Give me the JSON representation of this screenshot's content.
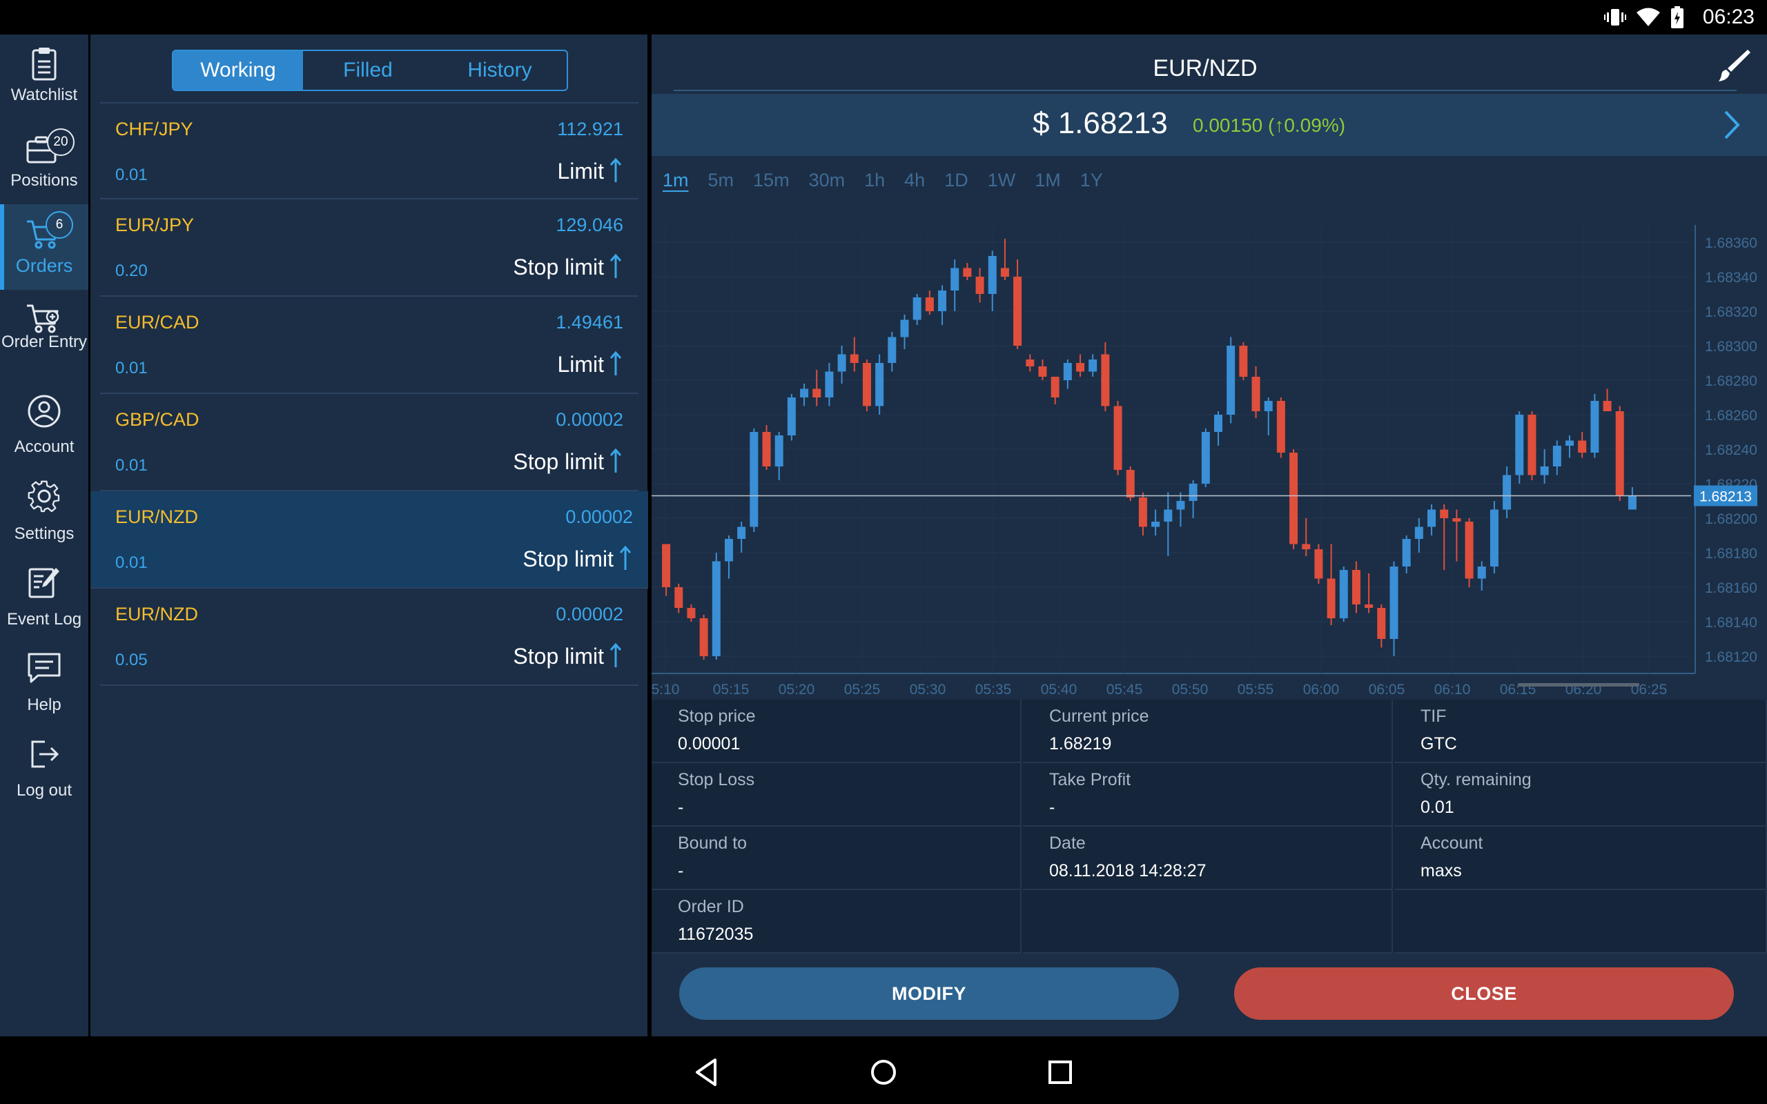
{
  "status_bar": {
    "time": "06:23",
    "icons": [
      "vibrate-icon",
      "wifi-icon",
      "battery-icon"
    ]
  },
  "sidebar": {
    "items": [
      {
        "id": "watchlist",
        "label": "Watchlist",
        "icon": "clipboard-icon"
      },
      {
        "id": "positions",
        "label": "Positions",
        "icon": "briefcase-icon",
        "badge": "20"
      },
      {
        "id": "orders",
        "label": "Orders",
        "icon": "cart-icon",
        "badge": "6",
        "active": true
      },
      {
        "id": "order-entry",
        "label": "Order Entry",
        "icon": "cart-plus-icon"
      },
      {
        "id": "account",
        "label": "Account",
        "icon": "user-icon"
      },
      {
        "id": "settings",
        "label": "Settings",
        "icon": "gear-icon"
      },
      {
        "id": "event-log",
        "label": "Event Log",
        "icon": "edit-log-icon"
      },
      {
        "id": "help",
        "label": "Help",
        "icon": "chat-icon"
      },
      {
        "id": "logout",
        "label": "Log out",
        "icon": "logout-icon"
      }
    ]
  },
  "orders": {
    "tabs": [
      {
        "label": "Working",
        "active": true
      },
      {
        "label": "Filled",
        "active": false
      },
      {
        "label": "History",
        "active": false
      }
    ],
    "rows": [
      {
        "symbol": "CHF/JPY",
        "price": "112.921",
        "qty": "0.01",
        "type": "Limit",
        "direction": "up"
      },
      {
        "symbol": "EUR/JPY",
        "price": "129.046",
        "qty": "0.20",
        "type": "Stop limit",
        "direction": "up"
      },
      {
        "symbol": "EUR/CAD",
        "price": "1.49461",
        "qty": "0.01",
        "type": "Limit",
        "direction": "up"
      },
      {
        "symbol": "GBP/CAD",
        "price": "0.00002",
        "qty": "0.01",
        "type": "Stop limit",
        "direction": "up"
      },
      {
        "symbol": "EUR/NZD",
        "price": "0.00002",
        "qty": "0.01",
        "type": "Stop limit",
        "direction": "up",
        "selected": true
      },
      {
        "symbol": "EUR/NZD",
        "price": "0.00002",
        "qty": "0.05",
        "type": "Stop limit",
        "direction": "up"
      }
    ]
  },
  "detail": {
    "title": "EUR/NZD",
    "last_price": "$ 1.68213",
    "change": "0.00150 (↑0.09%)",
    "timeframes": [
      "1m",
      "5m",
      "15m",
      "30m",
      "1h",
      "4h",
      "1D",
      "1W",
      "1M",
      "1Y"
    ],
    "active_timeframe": "1m",
    "fields": [
      {
        "label": "Stop price",
        "value": "0.00001"
      },
      {
        "label": "Current price",
        "value": "1.68219"
      },
      {
        "label": "TIF",
        "value": "GTC"
      },
      {
        "label": "Stop Loss",
        "value": "-"
      },
      {
        "label": "Take Profit",
        "value": "-"
      },
      {
        "label": "Qty. remaining",
        "value": "0.01"
      },
      {
        "label": "Bound to",
        "value": "-"
      },
      {
        "label": "Date",
        "value": "08.11.2018 14:28:27"
      },
      {
        "label": "Account",
        "value": "maxs"
      },
      {
        "label": "Order ID",
        "value": "11672035"
      },
      {
        "label": "",
        "value": ""
      },
      {
        "label": "",
        "value": ""
      }
    ],
    "modify_label": "MODIFY",
    "close_label": "CLOSE"
  },
  "colors": {
    "up": "#3a8fd6",
    "down": "#e04e3c",
    "accent": "#3aa6ea",
    "symbol": "#f6bd2c",
    "positive_change": "#8ecb3a"
  },
  "chart_data": {
    "type": "candlestick",
    "symbol": "EUR/NZD",
    "interval": "1m",
    "ylim": [
      1.6811,
      1.6837
    ],
    "y_ticks": [
      "1.68360",
      "1.68340",
      "1.68320",
      "1.68300",
      "1.68280",
      "1.68260",
      "1.68240",
      "1.68220",
      "1.68200",
      "1.68180",
      "1.68160",
      "1.68140",
      "1.68120"
    ],
    "x_ticks": [
      "5:10",
      "05:15",
      "05:20",
      "05:25",
      "05:30",
      "05:35",
      "05:40",
      "05:45",
      "05:50",
      "05:55",
      "06:00",
      "06:05",
      "06:10",
      "06:15",
      "06:20",
      "06:25"
    ],
    "current_price_label": "1.68213",
    "current_price": 1.68213,
    "candles": [
      [
        1.68185,
        1.68185,
        1.68155,
        1.6816
      ],
      [
        1.6816,
        1.68162,
        1.68145,
        1.68148
      ],
      [
        1.68148,
        1.6815,
        1.6814,
        1.68142
      ],
      [
        1.68142,
        1.68144,
        1.68118,
        1.6812
      ],
      [
        1.6812,
        1.6818,
        1.68118,
        1.68175
      ],
      [
        1.68175,
        1.6819,
        1.68165,
        1.68188
      ],
      [
        1.68188,
        1.68198,
        1.6818,
        1.68195
      ],
      [
        1.68195,
        1.68252,
        1.68192,
        1.6825
      ],
      [
        1.6825,
        1.68254,
        1.68228,
        1.6823
      ],
      [
        1.6823,
        1.6825,
        1.68222,
        1.68248
      ],
      [
        1.68248,
        1.68272,
        1.68245,
        1.6827
      ],
      [
        1.6827,
        1.68278,
        1.68265,
        1.68275
      ],
      [
        1.68275,
        1.68286,
        1.68265,
        1.6827
      ],
      [
        1.6827,
        1.6829,
        1.68265,
        1.68285
      ],
      [
        1.68285,
        1.683,
        1.68278,
        1.68295
      ],
      [
        1.68295,
        1.68305,
        1.68285,
        1.6829
      ],
      [
        1.6829,
        1.68292,
        1.68262,
        1.68265
      ],
      [
        1.68265,
        1.68295,
        1.6826,
        1.6829
      ],
      [
        1.6829,
        1.68308,
        1.68285,
        1.68305
      ],
      [
        1.68305,
        1.68318,
        1.68298,
        1.68315
      ],
      [
        1.68315,
        1.6833,
        1.68312,
        1.68328
      ],
      [
        1.68328,
        1.68332,
        1.68318,
        1.6832
      ],
      [
        1.6832,
        1.68335,
        1.68312,
        1.68332
      ],
      [
        1.68332,
        1.6835,
        1.6832,
        1.68345
      ],
      [
        1.68345,
        1.68348,
        1.68338,
        1.6834
      ],
      [
        1.6834,
        1.68345,
        1.68325,
        1.6833
      ],
      [
        1.6833,
        1.68355,
        1.6832,
        1.68352
      ],
      [
        1.68345,
        1.68362,
        1.68338,
        1.6834
      ],
      [
        1.6834,
        1.6835,
        1.68298,
        1.683
      ],
      [
        1.68292,
        1.68295,
        1.68285,
        1.68288
      ],
      [
        1.68288,
        1.68292,
        1.6828,
        1.68282
      ],
      [
        1.68282,
        1.68282,
        1.68266,
        1.6827
      ],
      [
        1.6828,
        1.68292,
        1.68275,
        1.6829
      ],
      [
        1.6829,
        1.68295,
        1.68282,
        1.68285
      ],
      [
        1.68285,
        1.68295,
        1.68282,
        1.68292
      ],
      [
        1.68295,
        1.68302,
        1.68262,
        1.68265
      ],
      [
        1.68265,
        1.68268,
        1.68225,
        1.68228
      ],
      [
        1.68228,
        1.6823,
        1.6821,
        1.68212
      ],
      [
        1.68212,
        1.68215,
        1.6819,
        1.68195
      ],
      [
        1.68195,
        1.68205,
        1.6819,
        1.68198
      ],
      [
        1.68198,
        1.68215,
        1.68178,
        1.68205
      ],
      [
        1.68205,
        1.68215,
        1.68195,
        1.6821
      ],
      [
        1.6821,
        1.68222,
        1.682,
        1.6822
      ],
      [
        1.6822,
        1.68252,
        1.68218,
        1.6825
      ],
      [
        1.6825,
        1.68262,
        1.68242,
        1.6826
      ],
      [
        1.6826,
        1.68305,
        1.68255,
        1.683
      ],
      [
        1.683,
        1.68302,
        1.6828,
        1.68282
      ],
      [
        1.68282,
        1.68288,
        1.68258,
        1.68262
      ],
      [
        1.68262,
        1.6827,
        1.68248,
        1.68268
      ],
      [
        1.68268,
        1.6827,
        1.68235,
        1.68238
      ],
      [
        1.68238,
        1.6824,
        1.68182,
        1.68185
      ],
      [
        1.68185,
        1.682,
        1.68178,
        1.68182
      ],
      [
        1.68182,
        1.68185,
        1.68162,
        1.68165
      ],
      [
        1.68165,
        1.68185,
        1.68138,
        1.68142
      ],
      [
        1.68142,
        1.68172,
        1.6814,
        1.6817
      ],
      [
        1.6817,
        1.68175,
        1.68145,
        1.6815
      ],
      [
        1.6815,
        1.68168,
        1.68145,
        1.68148
      ],
      [
        1.68148,
        1.6815,
        1.68125,
        1.6813
      ],
      [
        1.6813,
        1.68175,
        1.6812,
        1.68172
      ],
      [
        1.68172,
        1.6819,
        1.68168,
        1.68188
      ],
      [
        1.68188,
        1.682,
        1.6818,
        1.68195
      ],
      [
        1.68195,
        1.68208,
        1.6819,
        1.68205
      ],
      [
        1.68205,
        1.68208,
        1.6817,
        1.682
      ],
      [
        1.682,
        1.68205,
        1.68175,
        1.68198
      ],
      [
        1.68198,
        1.682,
        1.6816,
        1.68165
      ],
      [
        1.68165,
        1.68175,
        1.68158,
        1.68172
      ],
      [
        1.68172,
        1.6821,
        1.68168,
        1.68205
      ],
      [
        1.68205,
        1.6823,
        1.682,
        1.68225
      ],
      [
        1.68225,
        1.68262,
        1.6822,
        1.6826
      ],
      [
        1.6826,
        1.68262,
        1.68222,
        1.68225
      ],
      [
        1.68225,
        1.6824,
        1.6822,
        1.6823
      ],
      [
        1.6823,
        1.68245,
        1.68225,
        1.68242
      ],
      [
        1.68242,
        1.68248,
        1.68235,
        1.68245
      ],
      [
        1.68245,
        1.6825,
        1.68235,
        1.68238
      ],
      [
        1.68238,
        1.68272,
        1.68235,
        1.68268
      ],
      [
        1.68268,
        1.68275,
        1.68262,
        1.68262
      ],
      [
        1.68262,
        1.68265,
        1.6821,
        1.68213
      ],
      [
        1.68205,
        1.68218,
        1.68205,
        1.68213
      ]
    ]
  }
}
